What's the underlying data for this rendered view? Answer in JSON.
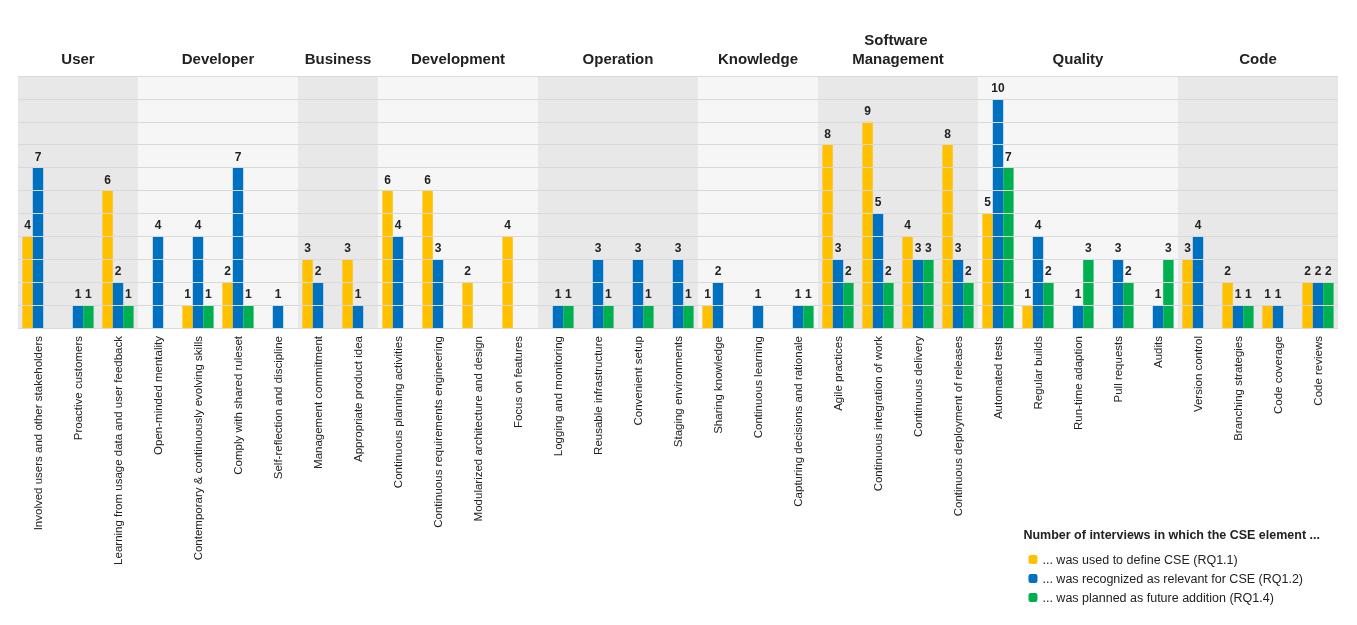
{
  "chart_data": {
    "type": "bar",
    "legend_title": "Number of interviews in which the CSE element ...",
    "categories": [
      "Involved users and other stakeholders",
      "Proactive customers",
      "Learning from usage data and user feedback",
      "Open-minded mentality",
      "Contemporary & continuously evolving skills",
      "Comply with shared ruleset",
      "Self-reflection and discipline",
      "Management commitment",
      "Appropriate product idea",
      "Continuous planning activities",
      "Continuous requirements engineering",
      "Modularized architecture and design",
      "Focus on features",
      "Logging and monitoring",
      "Reusable infrastructure",
      "Convenient setup",
      "Staging environments",
      "Sharing knowledge",
      "Continuous learning",
      "Capturing decisions and rationale",
      "Agile practices",
      "Continuous integration of work",
      "Continuous delivery",
      "Continuous deployment of releases",
      "Automated tests",
      "Regular builds",
      "Run-time adaption",
      "Pull requests",
      "Audits",
      "Version control",
      "Branching strategies",
      "Code coverage",
      "Code reviews"
    ],
    "series": [
      {
        "name": "... was used to define CSE (RQ1.1)",
        "color": "#ffc000",
        "values": [
          4,
          null,
          6,
          null,
          1,
          2,
          null,
          3,
          3,
          6,
          6,
          2,
          4,
          null,
          null,
          null,
          null,
          1,
          null,
          null,
          8,
          9,
          4,
          8,
          5,
          1,
          null,
          null,
          null,
          3,
          2,
          1,
          2
        ]
      },
      {
        "name": "... was recognized as relevant for CSE (RQ1.2)",
        "color": "#0070c0",
        "values": [
          7,
          1,
          2,
          4,
          4,
          7,
          1,
          2,
          1,
          4,
          3,
          null,
          null,
          1,
          3,
          3,
          3,
          2,
          1,
          1,
          3,
          5,
          3,
          3,
          10,
          4,
          1,
          3,
          1,
          4,
          1,
          1,
          2
        ]
      },
      {
        "name": "... was planned as future addition (RQ1.4)",
        "color": "#00b050",
        "values": [
          null,
          1,
          1,
          null,
          1,
          1,
          null,
          null,
          null,
          null,
          null,
          null,
          null,
          1,
          1,
          1,
          1,
          null,
          null,
          1,
          2,
          2,
          3,
          2,
          7,
          2,
          3,
          2,
          3,
          null,
          1,
          null,
          2
        ]
      }
    ],
    "bands": [
      {
        "axis": "x",
        "from": "Involved users and other stakeholders",
        "to": "Learning from usage data and user feedback",
        "label": "User",
        "color": "#e8e8e8"
      },
      {
        "axis": "x",
        "from": "Open-minded mentality",
        "to": "Self-reflection and discipline",
        "label": "Developer",
        "color": "#f6f6f6"
      },
      {
        "axis": "x",
        "from": "Management commitment",
        "to": "Appropriate product idea",
        "label": "Business",
        "color": "#e8e8e8"
      },
      {
        "axis": "x",
        "from": "Continuous planning activities",
        "to": "Focus on features",
        "label": "Development",
        "color": "#f6f6f6"
      },
      {
        "axis": "x",
        "from": "Logging and monitoring",
        "to": "Staging environments",
        "label": "Operation",
        "color": "#e8e8e8"
      },
      {
        "axis": "x",
        "from": "Sharing knowledge",
        "to": "Capturing decisions and rationale",
        "label": "Knowledge",
        "color": "#f6f6f6"
      },
      {
        "axis": "x",
        "from": "Agile practices",
        "to": "Continuous deployment of releases",
        "label": "Software Management",
        "color": "#e8e8e8"
      },
      {
        "axis": "x",
        "from": "Automated tests",
        "to": "Audits",
        "label": "Quality",
        "color": "#f6f6f6"
      },
      {
        "axis": "x",
        "from": "Version control",
        "to": "Code reviews",
        "label": "Code",
        "color": "#e8e8e8"
      }
    ],
    "ylim": [
      0,
      11
    ],
    "tick_labels": "x",
    "grid": "y",
    "data_labels": true,
    "legend": "bottom right"
  }
}
